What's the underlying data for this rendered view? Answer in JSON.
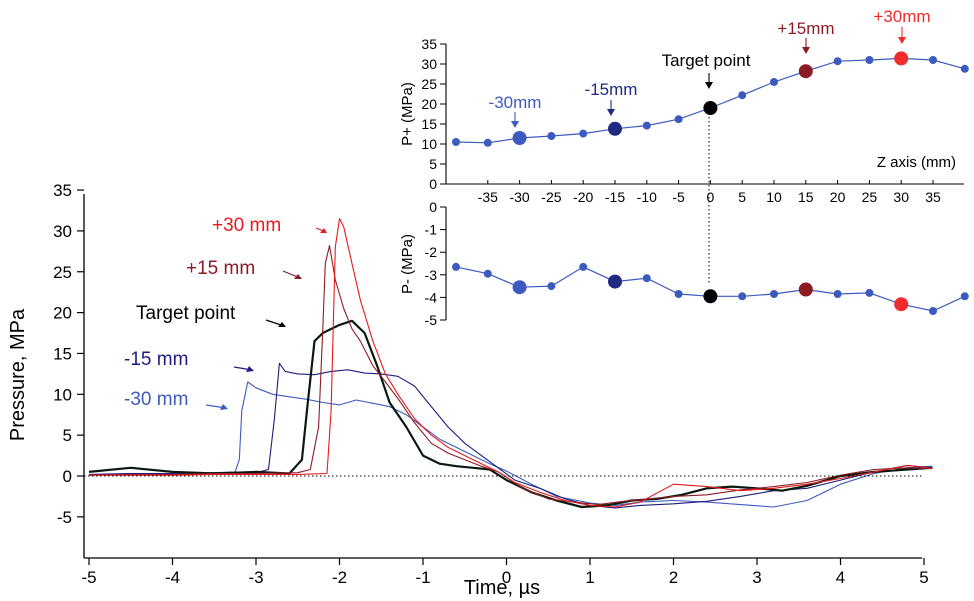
{
  "chart_data": [
    {
      "id": "main",
      "type": "line",
      "xlabel": "Time, µs",
      "ylabel": "Pressure, MPa",
      "xlim": [
        -5,
        5.1
      ],
      "ylim": [
        -8.5,
        35
      ],
      "xticks": [
        -5,
        -4,
        -3,
        -2,
        -1,
        0,
        1,
        2,
        3,
        4,
        5
      ],
      "yticks": [
        -5,
        0,
        5,
        10,
        15,
        20,
        25,
        30,
        35
      ],
      "zero_line": "dotted",
      "series": [
        {
          "name": "-30 mm",
          "color": "#3d5bbf",
          "x": [
            -5.0,
            -4.5,
            -4.0,
            -3.5,
            -3.25,
            -3.2,
            -3.17,
            -3.1,
            -3.0,
            -2.8,
            -2.6,
            -2.4,
            -2.2,
            -2.0,
            -1.8,
            -1.6,
            -1.4,
            -1.2,
            -1.0,
            -0.8,
            -0.6,
            -0.4,
            -0.2,
            0.0,
            0.3,
            0.6,
            1.0,
            1.3,
            1.6,
            2.0,
            2.4,
            2.8,
            3.2,
            3.6,
            4.0,
            4.4,
            4.8,
            5.1
          ],
          "y": [
            0.1,
            0.3,
            0.2,
            0.4,
            0.5,
            2.0,
            8.0,
            11.5,
            10.8,
            10.0,
            9.7,
            9.4,
            9.0,
            8.7,
            9.3,
            8.9,
            8.5,
            7.5,
            6.0,
            4.5,
            3.5,
            2.5,
            1.5,
            0.6,
            -1.0,
            -2.5,
            -3.3,
            -3.6,
            -3.2,
            -3.0,
            -3.2,
            -3.5,
            -3.8,
            -3.0,
            -1.0,
            0.3,
            1.0,
            1.2
          ]
        },
        {
          "name": "-15 mm",
          "color": "#1f1e80",
          "x": [
            -5.0,
            -4.5,
            -4.0,
            -3.5,
            -3.0,
            -2.85,
            -2.78,
            -2.72,
            -2.65,
            -2.5,
            -2.3,
            -2.1,
            -1.9,
            -1.7,
            -1.5,
            -1.3,
            -1.1,
            -0.9,
            -0.7,
            -0.5,
            -0.3,
            -0.1,
            0.1,
            0.4,
            0.7,
            1.0,
            1.3,
            1.6,
            2.0,
            2.4,
            2.8,
            3.2,
            3.6,
            4.0,
            4.4,
            4.8,
            5.1
          ],
          "y": [
            0.2,
            0.3,
            0.3,
            0.4,
            0.4,
            0.8,
            7.0,
            13.8,
            12.8,
            12.5,
            12.4,
            12.8,
            13.0,
            12.6,
            12.5,
            12.2,
            11.0,
            8.5,
            6.0,
            4.0,
            2.5,
            1.0,
            -0.5,
            -1.5,
            -2.8,
            -3.6,
            -3.9,
            -3.6,
            -3.4,
            -3.1,
            -2.5,
            -1.8,
            -1.5,
            -0.5,
            0.5,
            1.3,
            1.0
          ]
        },
        {
          "name": "Target point",
          "color": "#0a1a10",
          "x": [
            -5.0,
            -4.5,
            -4.0,
            -3.5,
            -3.0,
            -2.6,
            -2.45,
            -2.38,
            -2.3,
            -2.2,
            -2.0,
            -1.85,
            -1.7,
            -1.55,
            -1.4,
            -1.2,
            -1.0,
            -0.8,
            -0.6,
            -0.4,
            -0.2,
            0.0,
            0.3,
            0.6,
            0.9,
            1.2,
            1.5,
            1.8,
            2.1,
            2.4,
            2.7,
            3.0,
            3.3,
            3.6,
            4.0,
            4.4,
            4.8,
            5.1
          ],
          "y": [
            0.5,
            1.0,
            0.5,
            0.3,
            0.5,
            0.3,
            2.0,
            9.0,
            16.5,
            17.5,
            18.5,
            19.0,
            17.5,
            13.5,
            9.0,
            6.0,
            2.5,
            1.5,
            1.2,
            1.0,
            0.8,
            -0.5,
            -2.0,
            -3.0,
            -3.8,
            -3.6,
            -3.0,
            -2.8,
            -2.3,
            -1.5,
            -1.3,
            -1.5,
            -1.8,
            -1.2,
            0.0,
            0.5,
            0.8,
            1.0
          ]
        },
        {
          "name": "+15 mm",
          "color": "#8c1c24",
          "x": [
            -5.0,
            -4.5,
            -4.0,
            -3.5,
            -3.0,
            -2.5,
            -2.35,
            -2.25,
            -2.2,
            -2.17,
            -2.12,
            -2.05,
            -1.95,
            -1.85,
            -1.75,
            -1.6,
            -1.45,
            -1.3,
            -1.1,
            -0.9,
            -0.7,
            -0.5,
            -0.3,
            -0.1,
            0.2,
            0.5,
            0.8,
            1.1,
            1.4,
            1.7,
            2.0,
            2.4,
            2.8,
            3.2,
            3.6,
            4.0,
            4.4,
            4.8,
            5.1
          ],
          "y": [
            0.1,
            0.2,
            0.2,
            0.3,
            0.3,
            0.4,
            0.8,
            6.0,
            18.0,
            26.0,
            28.2,
            24.0,
            20.5,
            18.0,
            16.5,
            13.5,
            11.5,
            9.5,
            6.5,
            4.0,
            2.8,
            2.0,
            1.2,
            0.5,
            -1.5,
            -2.8,
            -3.2,
            -3.5,
            -3.1,
            -2.8,
            -2.5,
            -2.3,
            -1.7,
            -1.3,
            -0.8,
            0.1,
            0.8,
            1.0,
            0.9
          ]
        },
        {
          "name": "+30 mm",
          "color": "#e8191f",
          "x": [
            -5.0,
            -4.5,
            -4.0,
            -3.5,
            -3.0,
            -2.5,
            -2.15,
            -2.1,
            -2.05,
            -2.0,
            -1.95,
            -1.85,
            -1.75,
            -1.6,
            -1.45,
            -1.3,
            -1.1,
            -0.9,
            -0.7,
            -0.5,
            -0.3,
            -0.1,
            0.1,
            0.4,
            0.7,
            1.0,
            1.3,
            1.6,
            2.0,
            2.4,
            2.8,
            3.2,
            3.6,
            4.0,
            4.4,
            4.8,
            5.1
          ],
          "y": [
            0.1,
            0.1,
            0.1,
            0.2,
            0.2,
            0.2,
            0.3,
            8.0,
            28.0,
            31.5,
            30.5,
            26.0,
            21.5,
            16.5,
            12.5,
            10.0,
            7.0,
            5.0,
            3.5,
            2.5,
            1.5,
            0.5,
            -0.8,
            -2.0,
            -3.0,
            -3.6,
            -3.8,
            -3.2,
            -1.0,
            -1.3,
            -1.8,
            -1.5,
            -1.0,
            -0.3,
            0.5,
            1.3,
            0.9
          ]
        }
      ],
      "annotations": [
        {
          "text": "+30 mm",
          "color": "#e8191f"
        },
        {
          "text": "+15 mm",
          "color": "#8c1c24"
        },
        {
          "text": "Target point",
          "color": "#000000"
        },
        {
          "text": "-15 mm",
          "color": "#1f1e80"
        },
        {
          "text": "-30 mm",
          "color": "#3d5bbf"
        }
      ]
    },
    {
      "id": "inset_top",
      "type": "line",
      "ylabel": "P+ (MPa)",
      "xlabel": "Z axis (mm)",
      "xlim": [
        -40,
        40
      ],
      "ylim": [
        0,
        35
      ],
      "xticks": [
        -35,
        -30,
        -25,
        -20,
        -15,
        -10,
        -5,
        0,
        5,
        10,
        15,
        20,
        25,
        30,
        35
      ],
      "yticks": [
        0,
        5,
        10,
        15,
        20,
        25,
        30,
        35
      ],
      "line_color": "#3d5bbf",
      "x": [
        -40,
        -35,
        -30,
        -25,
        -20,
        -15,
        -10,
        -5,
        0,
        5,
        10,
        15,
        20,
        25,
        30,
        35,
        40
      ],
      "values": [
        10.5,
        10.3,
        11.5,
        12.0,
        12.6,
        13.8,
        14.6,
        16.2,
        19.0,
        22.2,
        25.5,
        28.2,
        30.7,
        31.0,
        31.4,
        31.0,
        28.8
      ],
      "highlights": [
        {
          "x": -30,
          "color": "#3d5bbf",
          "label": "-30mm"
        },
        {
          "x": -15,
          "color": "#1f2a80",
          "label": "-15mm"
        },
        {
          "x": 0,
          "color": "#000000",
          "label": "Target point"
        },
        {
          "x": 15,
          "color": "#8c1c24",
          "label": "+15mm"
        },
        {
          "x": 30,
          "color": "#ef2b2b",
          "label": "+30mm"
        }
      ]
    },
    {
      "id": "inset_bottom",
      "type": "line",
      "ylabel": "P- (MPa)",
      "xlim": [
        -40,
        40
      ],
      "ylim": [
        -5,
        0
      ],
      "yticks": [
        -5,
        -4,
        -3,
        -2,
        -1,
        0
      ],
      "line_color": "#3d5bbf",
      "x": [
        -40,
        -35,
        -30,
        -25,
        -20,
        -15,
        -10,
        -5,
        0,
        5,
        10,
        15,
        20,
        25,
        30,
        35,
        40
      ],
      "values": [
        -2.65,
        -2.95,
        -3.55,
        -3.5,
        -2.65,
        -3.3,
        -3.15,
        -3.85,
        -3.95,
        -3.95,
        -3.85,
        -3.65,
        -3.85,
        -3.8,
        -4.3,
        -4.6,
        -3.95
      ],
      "highlights": [
        {
          "x": -30,
          "color": "#3d5bbf"
        },
        {
          "x": -15,
          "color": "#1f2a80"
        },
        {
          "x": 0,
          "color": "#000000"
        },
        {
          "x": 15,
          "color": "#8c1c24"
        },
        {
          "x": 30,
          "color": "#ef2b2b"
        }
      ]
    }
  ]
}
